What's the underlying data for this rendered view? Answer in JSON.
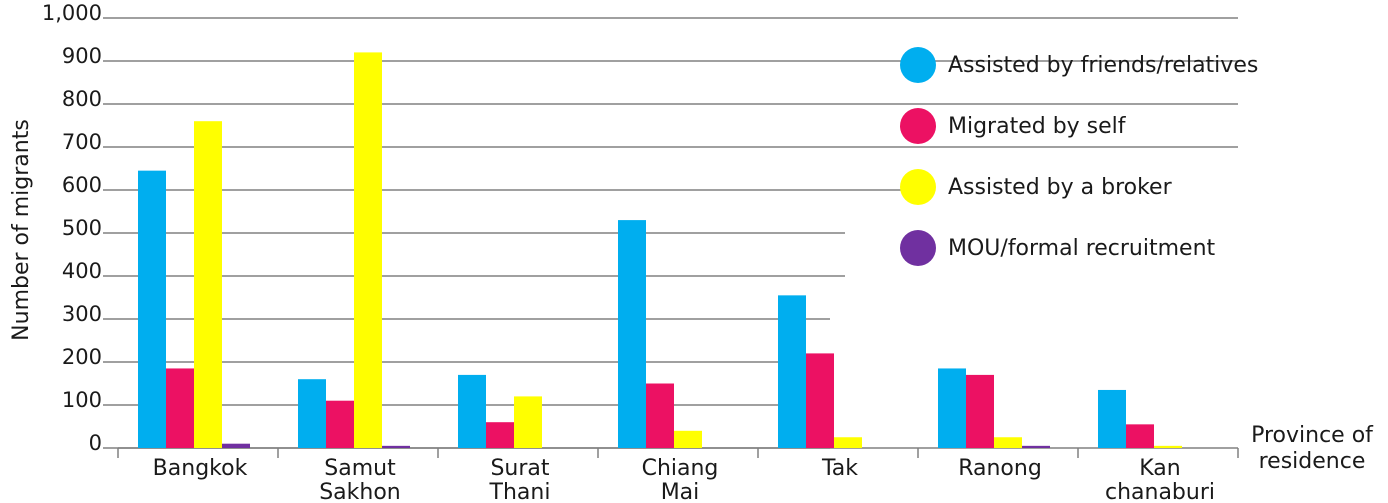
{
  "chart_data": {
    "type": "bar",
    "title": "",
    "xlabel": "Province of residence",
    "ylabel": "Number of migrants",
    "ylim": [
      0,
      1000
    ],
    "yticks": [
      "0",
      "100",
      "200",
      "300",
      "400",
      "500",
      "600",
      "700",
      "800",
      "900",
      "1,000"
    ],
    "grid": true,
    "legend_position": "top-right",
    "categories": [
      [
        "Bangkok"
      ],
      [
        "Samut",
        "Sakhon"
      ],
      [
        "Surat",
        "Thani"
      ],
      [
        "Chiang",
        "Mai"
      ],
      [
        "Tak"
      ],
      [
        "Ranong"
      ],
      [
        "Kan",
        "chanaburi"
      ]
    ],
    "series": [
      {
        "name": "Assisted by friends/relatives",
        "color": "#00AEEF",
        "values": [
          645,
          160,
          170,
          530,
          355,
          185,
          135
        ]
      },
      {
        "name": "Migrated by self",
        "color": "#EC1163",
        "values": [
          185,
          110,
          60,
          150,
          220,
          170,
          55
        ]
      },
      {
        "name": "Assisted by a broker",
        "color": "#FFFF00",
        "values": [
          760,
          920,
          120,
          40,
          25,
          25,
          5
        ]
      },
      {
        "name": "MOU/formal recruitment",
        "color": "#7030A0",
        "values": [
          10,
          5,
          0,
          0,
          0,
          5,
          0
        ]
      }
    ]
  }
}
